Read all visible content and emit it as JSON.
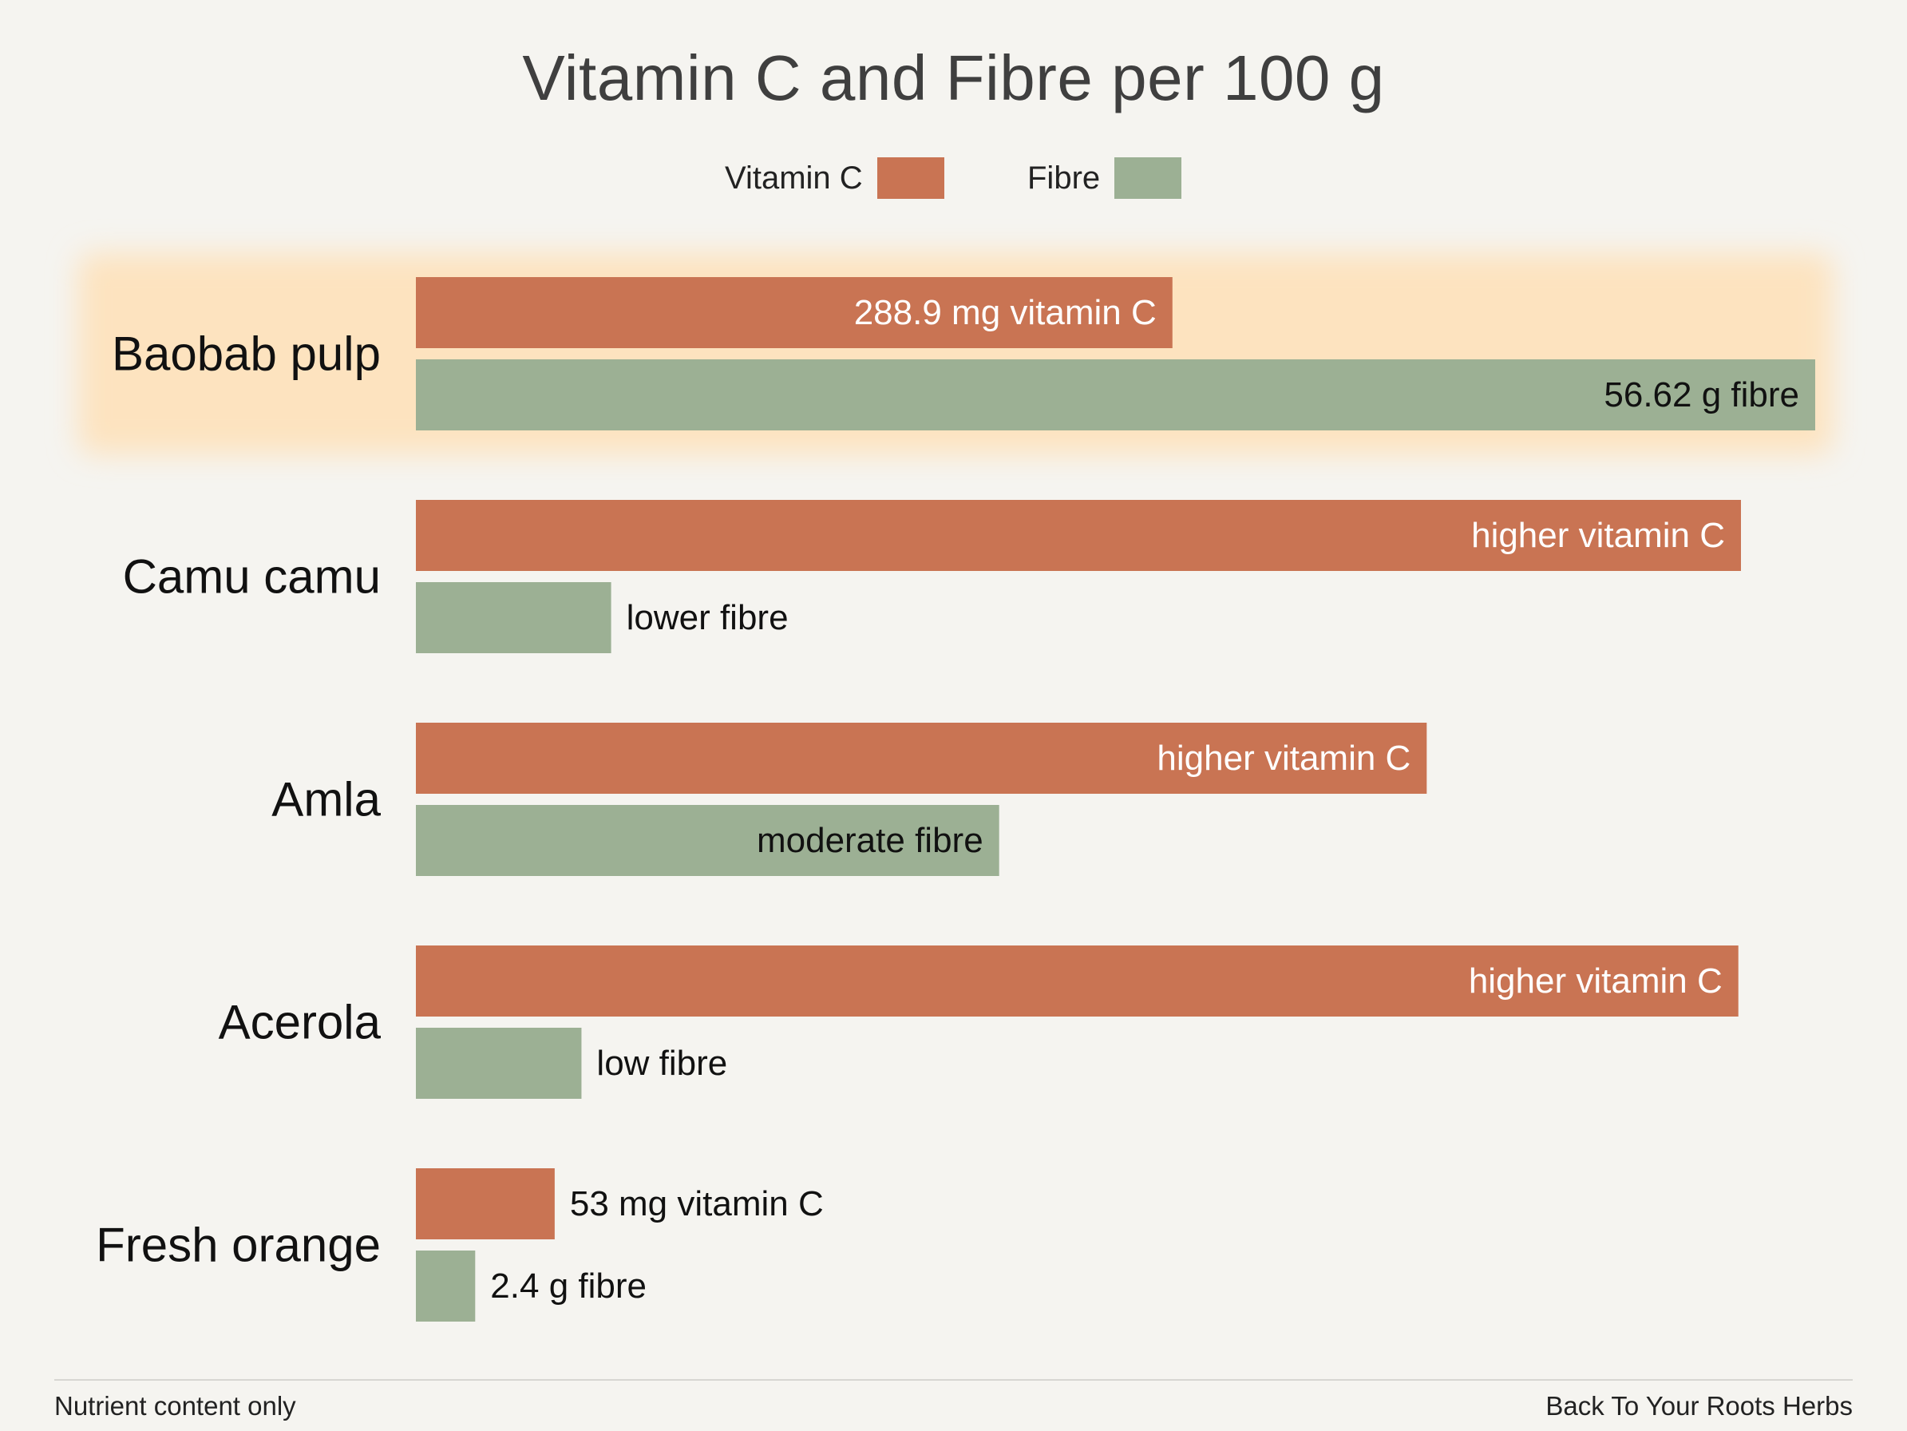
{
  "chart_data": {
    "type": "bar",
    "orientation": "horizontal",
    "title": "Vitamin C and Fibre per 100 g",
    "xlabel": "",
    "ylabel": "",
    "grid": false,
    "legend_position": "top-center",
    "categories": [
      "Baobab pulp",
      "Camu camu",
      "Amla",
      "Acerola",
      "Fresh orange"
    ],
    "highlight_category": "Baobab pulp",
    "highlight_color": "#fde3bf",
    "series": [
      {
        "name": "Vitamin C",
        "color": "#c97453",
        "values": [
          288.9,
          506,
          386,
          505,
          53
        ],
        "labels": [
          "288.9 mg vitamin C",
          "higher vitamin C",
          "higher vitamin C",
          "higher vitamin C",
          "53 mg vitamin C"
        ]
      },
      {
        "name": "Fibre",
        "color": "#9cb094",
        "values": [
          56.62,
          7.9,
          23.6,
          6.7,
          2.4
        ],
        "labels": [
          "56.62 g fibre",
          "lower fibre",
          "moderate fibre",
          "low fibre",
          "2.4 g fibre"
        ]
      }
    ]
  },
  "footer": {
    "left": "Nutrient content only",
    "right": "Back To Your Roots Herbs"
  }
}
